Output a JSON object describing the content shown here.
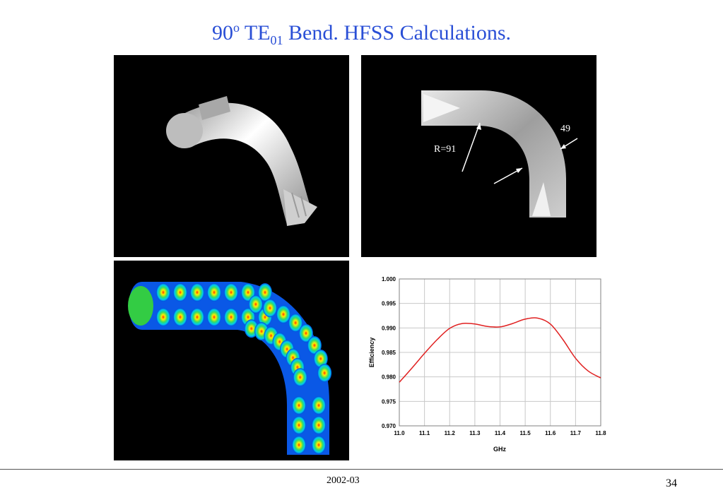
{
  "title": {
    "main": "90",
    "sup": "o",
    "mid": " TE",
    "sub": "01",
    "rest": " Bend. HFSS Calculations."
  },
  "geometry_labels": {
    "radius": "R=91",
    "width": "49"
  },
  "footer": {
    "date": "2002-03",
    "page": "34"
  },
  "colors": {
    "title": "#2a4fd6",
    "curve": "#e02020",
    "grid": "#c8c8c8"
  },
  "chart_data": {
    "type": "line",
    "xlabel": "GHz",
    "ylabel": "Efficiency",
    "xlim": [
      11.0,
      11.8
    ],
    "ylim": [
      0.97,
      1.0
    ],
    "xticks": [
      "11.0",
      "11.1",
      "11.2",
      "11.3",
      "11.4",
      "11.5",
      "11.6",
      "11.7",
      "11.8"
    ],
    "yticks": [
      "0.970",
      "0.975",
      "0.980",
      "0.985",
      "0.990",
      "0.995",
      "1.000"
    ],
    "grid": true,
    "series": [
      {
        "x": [
          11.0,
          11.05,
          11.1,
          11.15,
          11.2,
          11.25,
          11.3,
          11.35,
          11.4,
          11.45,
          11.5,
          11.55,
          11.6,
          11.65,
          11.7,
          11.75,
          11.8
        ],
        "y": [
          0.9789,
          0.9818,
          0.9848,
          0.9876,
          0.9899,
          0.9909,
          0.9908,
          0.9903,
          0.9902,
          0.9909,
          0.9918,
          0.992,
          0.9908,
          0.9876,
          0.9838,
          0.9812,
          0.9798
        ]
      }
    ]
  }
}
